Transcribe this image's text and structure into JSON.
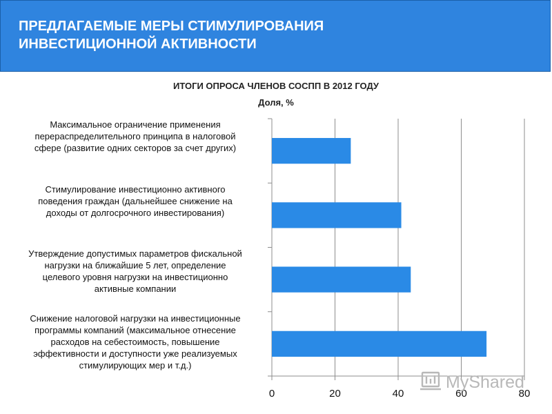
{
  "header": {
    "title_lines": [
      "ПРЕДЛАГАЕМЫЕ МЕРЫ СТИМУЛИРОВАНИЯ",
      "ИНВЕСТИЦИОННОЙ АКТИВНОСТИ"
    ]
  },
  "chart_data": {
    "type": "bar",
    "orientation": "horizontal",
    "title": "ИТОГИ ОПРОСА ЧЛЕНОВ СОСПП В 2012 ГОДУ",
    "subtitle": "Доля, %",
    "categories": [
      [
        "Максимальное ограничение применения",
        "перераспределительного принципа в налоговой",
        "сфере (развитие одних секторов за счет других)"
      ],
      [
        "Стимулирование инвестиционно активного",
        "поведения граждан (дальнейшее снижение на",
        "доходы от долгосрочного инвестирования)"
      ],
      [
        "Утверждение допустимых параметров фискальной",
        "нагрузки на ближайшие 5 лет, определение",
        "целевого уровня нагрузки на инвестиционно",
        "активные компании"
      ],
      [
        "Снижение налоговой нагрузки на инвестиционные",
        "программы компаний (максимальное отнесение",
        "расходов на себестоимость, повышение",
        "эффективности и доступности уже реализуемых",
        "стимулирующих мер и т.д.)"
      ]
    ],
    "values": [
      25,
      41,
      44,
      68
    ],
    "xlim": [
      0,
      80
    ],
    "xticks": [
      "0",
      "20",
      "40",
      "60",
      "80"
    ],
    "grid": true,
    "bar_color": "#2a8ae6",
    "grid_color": "#8c8c8c"
  },
  "watermark": {
    "text": "MyShared",
    "color": "#b8b8b8"
  }
}
